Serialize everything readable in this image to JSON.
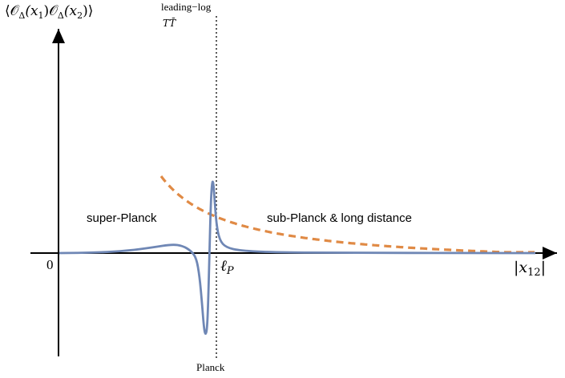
{
  "axes": {
    "origin_label": "0",
    "x_label_var": "x",
    "x_label_sub": "12",
    "y_label": {
      "open": "⟨",
      "op1": "𝒪",
      "op1_sub": "Δ",
      "arg1": "(x",
      "arg1_sub": "1",
      "arg1_close": ")",
      "op2": "𝒪",
      "op2_sub": "Δ",
      "arg2": "(x",
      "arg2_sub": "2",
      "arg2_close": ")",
      "close": "⟩",
      "superscript": "leading−log",
      "subscript": "TT̄"
    }
  },
  "planck": {
    "marker_symbol": "ℓ",
    "marker_sub": "P",
    "line_label": "Planck"
  },
  "regions": {
    "left": "super-Planck",
    "right": "sub-Planck & long distance"
  },
  "colors": {
    "solid_curve": "#6f87b5",
    "dashed_curve": "#e08a45",
    "axis": "#000000"
  }
}
